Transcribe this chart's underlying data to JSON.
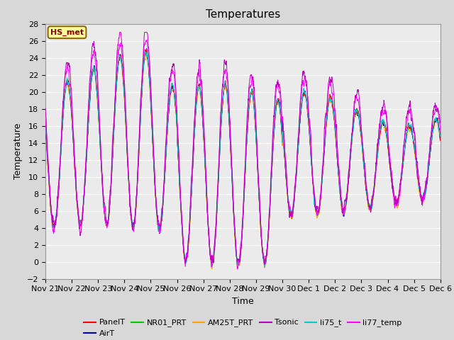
{
  "title": "Temperatures",
  "xlabel": "Time",
  "ylabel": "Temperature",
  "ylim": [
    -2,
    28
  ],
  "annotation_text": "HS_met",
  "series_colors": {
    "PanelT": "#FF0000",
    "AirT": "#0000CC",
    "NR01_PRT": "#00CC00",
    "AM25T_PRT": "#FFA500",
    "Tsonic": "#BB00BB",
    "li75_t": "#00CCCC",
    "li77_temp": "#FF00FF"
  },
  "xtick_labels": [
    "Nov 21",
    "Nov 22",
    "Nov 23",
    "Nov 24",
    "Nov 25",
    "Nov 26",
    "Nov 27",
    "Nov 28",
    "Nov 29",
    "Nov 30",
    "Dec 1",
    "Dec 2",
    "Dec 3",
    "Dec 4",
    "Dec 5",
    "Dec 6"
  ],
  "background_color": "#D8D8D8",
  "plot_bg_color": "#EBEBEB",
  "grid_color": "#FFFFFF",
  "n_days": 15,
  "pts_per_day": 144,
  "figsize": [
    6.4,
    4.8
  ],
  "dpi": 100
}
